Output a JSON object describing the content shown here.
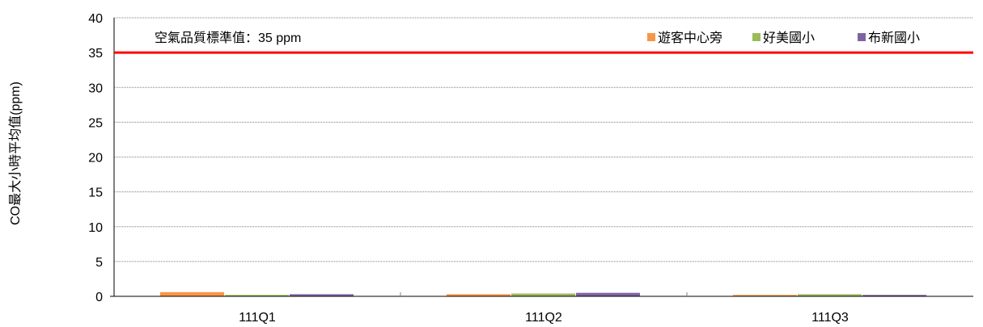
{
  "chart_data": {
    "type": "bar",
    "title": "",
    "xlabel": "",
    "ylabel": "CO最大小時平均值(ppm)",
    "ylim": [
      0,
      40
    ],
    "yticks": [
      0,
      5,
      10,
      15,
      20,
      25,
      30,
      35,
      40
    ],
    "grid": true,
    "legend_position": "top-right",
    "categories": [
      "111Q1",
      "111Q2",
      "111Q3"
    ],
    "series": [
      {
        "name": "遊客中心旁",
        "color": "#f79646",
        "values": [
          0.6,
          0.3,
          0.2
        ]
      },
      {
        "name": "好美國小",
        "color": "#9bbb59",
        "values": [
          0.2,
          0.4,
          0.3
        ]
      },
      {
        "name": "布新國小",
        "color": "#8064a2",
        "values": [
          0.3,
          0.5,
          0.2
        ]
      }
    ],
    "reference_line": {
      "value": 35,
      "color": "#ff0000",
      "label": "空氣品質標準值：35 ppm"
    }
  }
}
